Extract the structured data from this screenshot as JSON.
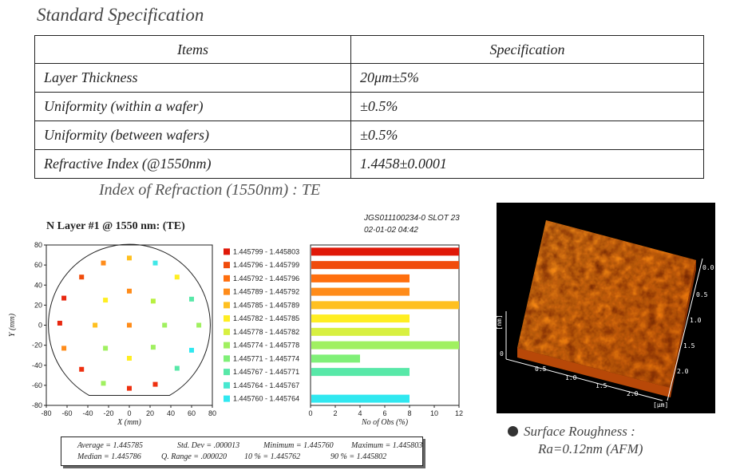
{
  "page_title": "Standard Specification",
  "spec_table": {
    "headers": [
      "Items",
      "Specification"
    ],
    "rows": [
      [
        "Layer Thickness",
        "20μm±5%"
      ],
      [
        "Uniformity (within a wafer)",
        "±0.5%"
      ],
      [
        "Uniformity (between wafers)",
        "±0.5%"
      ],
      [
        "Refractive Index (@1550nm)",
        "1.4458±0.0001"
      ]
    ]
  },
  "section_title": "Index of Refraction (1550nm) : TE",
  "chart_header": {
    "title": "N Layer #1 @ 1550 nm:   (TE)",
    "sample_id": "JGS011100234-0 SLOT 23",
    "timestamp": "02-01-02 04:42"
  },
  "chart_data": [
    {
      "type": "scatter",
      "xlabel": "X (mm)",
      "ylabel": "Y (mm)",
      "xlim": [
        -80,
        80
      ],
      "ylim": [
        -80,
        80
      ],
      "x_ticks": [
        "-80",
        "-60",
        "-40",
        "-20",
        "0",
        "20",
        "40",
        "60",
        "80"
      ],
      "y_ticks": [
        "80",
        "60",
        "40",
        "20",
        "0",
        "-20",
        "-40",
        "-60",
        "-80"
      ],
      "points": [
        {
          "x": -25,
          "y": 62,
          "color": "#ff8c1a"
        },
        {
          "x": 0,
          "y": 67,
          "color": "#ffc020"
        },
        {
          "x": 25,
          "y": 62,
          "color": "#40e8e8"
        },
        {
          "x": -46,
          "y": 48,
          "color": "#f04c0c"
        },
        {
          "x": 46,
          "y": 48,
          "color": "#ffee22"
        },
        {
          "x": 0,
          "y": 34,
          "color": "#ff8c1a"
        },
        {
          "x": -63,
          "y": 27,
          "color": "#e82810"
        },
        {
          "x": -23,
          "y": 25,
          "color": "#ffee22"
        },
        {
          "x": 23,
          "y": 24,
          "color": "#b8f040"
        },
        {
          "x": 60,
          "y": 26,
          "color": "#58e8a8"
        },
        {
          "x": -67,
          "y": 2,
          "color": "#e82810"
        },
        {
          "x": -33,
          "y": 0,
          "color": "#ffc020"
        },
        {
          "x": 0,
          "y": 0,
          "color": "#ff8c1a"
        },
        {
          "x": 34,
          "y": 0,
          "color": "#a0f060"
        },
        {
          "x": 67,
          "y": 0,
          "color": "#a0f060"
        },
        {
          "x": -63,
          "y": -23,
          "color": "#ff8c1a"
        },
        {
          "x": -23,
          "y": -23,
          "color": "#a0f060"
        },
        {
          "x": 23,
          "y": -22,
          "color": "#a0f060"
        },
        {
          "x": 60,
          "y": -25,
          "color": "#30e8f0"
        },
        {
          "x": 0,
          "y": -33,
          "color": "#ffee22"
        },
        {
          "x": -46,
          "y": -44,
          "color": "#ee3010"
        },
        {
          "x": 46,
          "y": -43,
          "color": "#58e8a8"
        },
        {
          "x": -25,
          "y": -58,
          "color": "#a0f060"
        },
        {
          "x": 25,
          "y": -59,
          "color": "#ee3010"
        },
        {
          "x": 0,
          "y": -63,
          "color": "#ee3010"
        }
      ]
    },
    {
      "type": "bar",
      "orientation": "horizontal",
      "xlabel": "No of Obs (%)",
      "xlim": [
        0,
        12
      ],
      "x_ticks": [
        "0",
        "2",
        "4",
        "6",
        "8",
        "10",
        "12"
      ],
      "categories": [
        "1.445799 - 1.445803",
        "1.445796 - 1.445799",
        "1.445792 - 1.445796",
        "1.445789 - 1.445792",
        "1.445785 - 1.445789",
        "1.445782 - 1.445785",
        "1.445778 - 1.445782",
        "1.445774 - 1.445778",
        "1.445771 - 1.445774",
        "1.445767 - 1.445771",
        "1.445764 - 1.445767",
        "1.445760 - 1.445764"
      ],
      "values": [
        12,
        12,
        8,
        8,
        12,
        8,
        8,
        12,
        4,
        8,
        0,
        8
      ],
      "colors": [
        "#e01808",
        "#f04c0c",
        "#ff6f0e",
        "#ff8c1a",
        "#ffc020",
        "#ffee22",
        "#d8f040",
        "#a0f060",
        "#80f078",
        "#58e8a8",
        "#48e8d0",
        "#30e8f0"
      ]
    }
  ],
  "stats": {
    "line1": [
      "Average = 1.445785",
      "Std. Dev  = .000013",
      "Minimum = 1.445760",
      "Maximum = 1.445803"
    ],
    "line2": [
      "Median  = 1.445786",
      "Q. Range = .000020",
      "10 % = 1.445762",
      "90 % = 1.445802"
    ]
  },
  "afm": {
    "x_ticks": [
      "0.5",
      "1.0",
      "1.5",
      "2.0"
    ],
    "y_ticks": [
      "0.0",
      "0.5",
      "1.0",
      "1.5",
      "2.0"
    ],
    "z_ticks": [
      "0"
    ],
    "z_unit": "[nm]",
    "xy_unit": "[μm]"
  },
  "roughness": {
    "line1": "Surface Roughness :",
    "line2": "Ra=0.12nm   (AFM)"
  }
}
